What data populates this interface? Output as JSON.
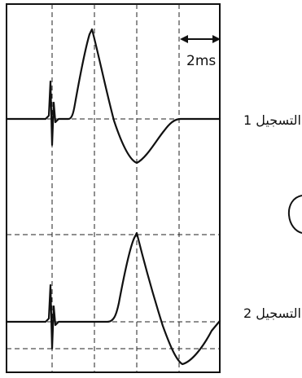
{
  "scale_bar": {
    "label": "2ms"
  },
  "recordings": [
    {
      "label": "التسجيل 1"
    },
    {
      "label": "التسجيل 2"
    }
  ],
  "colors": {
    "trace": "#111111",
    "frame": "#111111",
    "grid": "#222222",
    "background": "#ffffff"
  }
}
